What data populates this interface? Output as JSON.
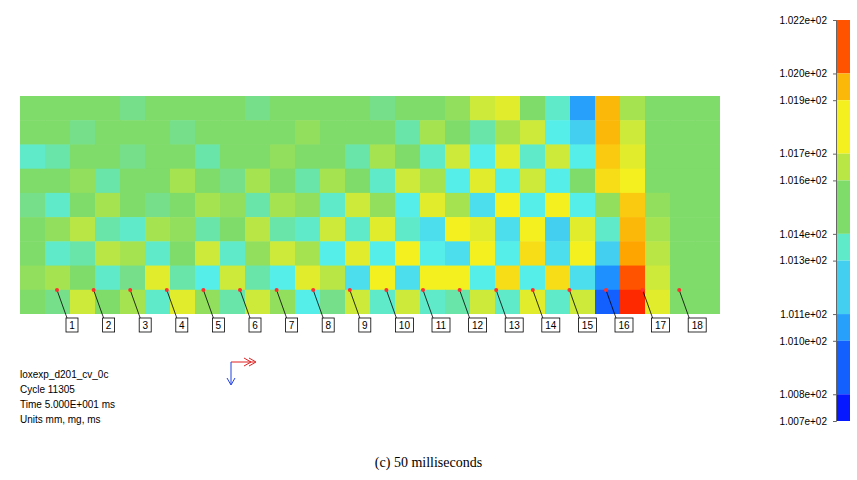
{
  "chart_data": {
    "type": "heatmap",
    "annotations": [
      "loxexp_d201_cv_0c",
      "Cycle 11305",
      "Time 5.000E+001 ms",
      "Units mm, mg, ms"
    ],
    "caption": "(c) 50 milliseconds",
    "gauge_labels": [
      "1",
      "2",
      "3",
      "4",
      "5",
      "6",
      "7",
      "8",
      "9",
      "10",
      "11",
      "12",
      "13",
      "14",
      "15",
      "16",
      "17",
      "18"
    ],
    "cells": [
      [
        101.5,
        101.5,
        101.5,
        101.5,
        101.45,
        101.5,
        101.5,
        101.5,
        101.5,
        101.45,
        101.5,
        101.5,
        101.5,
        101.5,
        101.45,
        101.5,
        101.5,
        101.55,
        101.7,
        101.75,
        101.5,
        101.35,
        101.05,
        101.95,
        101.6,
        101.5,
        101.5,
        101.5
      ],
      [
        101.5,
        101.5,
        101.45,
        101.5,
        101.5,
        101.5,
        101.45,
        101.5,
        101.5,
        101.5,
        101.5,
        101.55,
        101.5,
        101.5,
        101.5,
        101.4,
        101.6,
        101.5,
        101.4,
        101.6,
        101.7,
        101.3,
        101.2,
        101.95,
        101.7,
        101.5,
        101.5,
        101.5
      ],
      [
        101.35,
        101.4,
        101.5,
        101.5,
        101.45,
        101.5,
        101.5,
        101.4,
        101.5,
        101.5,
        101.55,
        101.5,
        101.5,
        101.4,
        101.6,
        101.5,
        101.35,
        101.7,
        101.3,
        101.75,
        101.35,
        101.7,
        101.3,
        101.9,
        101.75,
        101.5,
        101.5,
        101.5
      ],
      [
        101.5,
        101.5,
        101.55,
        101.4,
        101.5,
        101.5,
        101.6,
        101.5,
        101.45,
        101.6,
        101.5,
        101.4,
        101.6,
        101.5,
        101.35,
        101.7,
        101.6,
        101.3,
        101.75,
        101.3,
        101.7,
        101.3,
        101.5,
        101.85,
        101.8,
        101.5,
        101.5,
        101.5
      ],
      [
        101.45,
        101.35,
        101.5,
        101.6,
        101.5,
        101.45,
        101.5,
        101.6,
        101.55,
        101.4,
        101.6,
        101.55,
        101.35,
        101.7,
        101.55,
        101.3,
        101.75,
        101.6,
        101.25,
        101.8,
        101.3,
        101.8,
        101.3,
        101.55,
        101.9,
        101.55,
        101.5,
        101.5
      ],
      [
        101.5,
        101.55,
        101.65,
        101.4,
        101.35,
        101.6,
        101.55,
        101.4,
        101.5,
        101.65,
        101.4,
        101.35,
        101.7,
        101.35,
        101.75,
        101.35,
        101.25,
        101.8,
        101.75,
        101.25,
        101.8,
        101.2,
        101.75,
        101.35,
        101.95,
        101.6,
        101.5,
        101.5
      ],
      [
        101.5,
        101.35,
        101.4,
        101.65,
        101.6,
        101.35,
        101.5,
        101.7,
        101.35,
        101.55,
        101.7,
        101.6,
        101.3,
        101.75,
        101.3,
        101.8,
        101.3,
        101.25,
        101.8,
        101.3,
        101.85,
        101.25,
        101.8,
        101.2,
        102.0,
        101.65,
        101.5,
        101.5
      ],
      [
        101.55,
        101.6,
        101.5,
        101.35,
        101.45,
        101.75,
        101.4,
        101.3,
        101.7,
        101.4,
        101.3,
        101.75,
        101.65,
        101.25,
        101.8,
        101.25,
        101.8,
        101.8,
        101.3,
        101.85,
        101.3,
        101.85,
        101.25,
        101.0,
        102.1,
        101.7,
        101.5,
        101.5
      ],
      [
        101.5,
        101.45,
        101.7,
        101.5,
        101.6,
        101.35,
        101.75,
        101.55,
        101.4,
        101.7,
        101.55,
        101.3,
        101.45,
        101.7,
        101.35,
        101.7,
        101.35,
        101.4,
        101.7,
        101.35,
        101.75,
        101.35,
        101.7,
        100.9,
        102.15,
        101.75,
        101.5,
        101.5
      ]
    ],
    "colorbar": {
      "range": [
        100.7,
        102.2
      ],
      "ticks": [
        {
          "value": 102.2,
          "label": "1.022e+02"
        },
        {
          "value": 102.0,
          "label": "1.020e+02"
        },
        {
          "value": 101.9,
          "label": "1.019e+02"
        },
        {
          "value": 101.7,
          "label": "1.017e+02"
        },
        {
          "value": 101.6,
          "label": "1.016e+02"
        },
        {
          "value": 101.4,
          "label": "1.014e+02"
        },
        {
          "value": 101.3,
          "label": "1.013e+02"
        },
        {
          "value": 101.1,
          "label": "1.011e+02"
        },
        {
          "value": 101.0,
          "label": "1.010e+02"
        },
        {
          "value": 100.8,
          "label": "1.008e+02"
        },
        {
          "value": 100.7,
          "label": "1.007e+02"
        }
      ]
    }
  }
}
